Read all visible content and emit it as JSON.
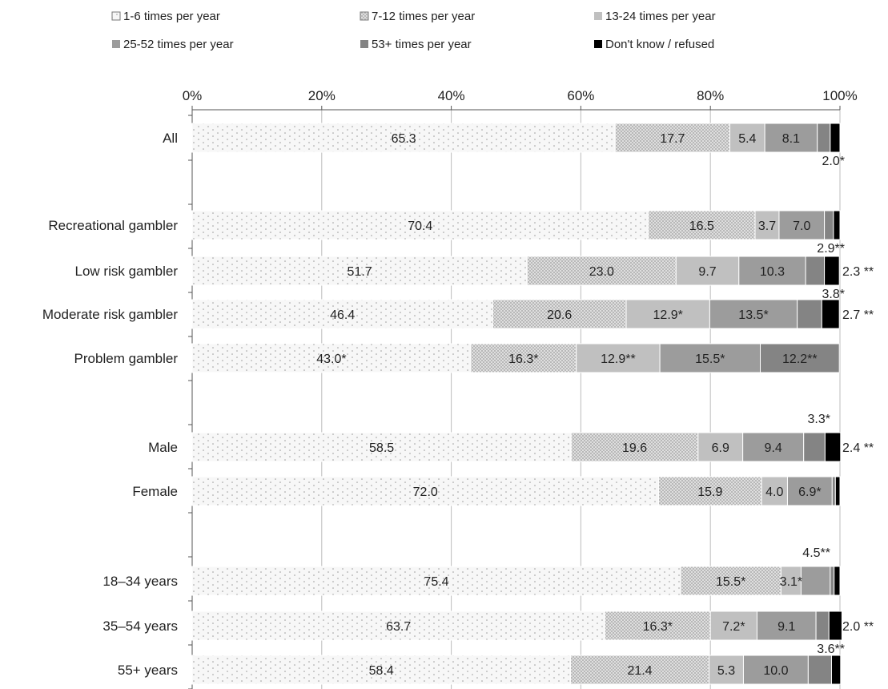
{
  "chart_data": {
    "type": "bar",
    "orientation": "horizontal",
    "stacked": true,
    "title": "",
    "xlabel": "",
    "ylabel": "",
    "xlim": [
      0,
      100
    ],
    "x_ticks": [
      "0%",
      "20%",
      "40%",
      "60%",
      "80%",
      "100%"
    ],
    "x_axis_position": "top",
    "grid": true,
    "legend_position": "top",
    "categories": [
      "All",
      "Recreational gambler",
      "Low risk gambler",
      "Moderate risk gambler",
      "Problem gambler",
      "Male",
      "Female",
      "18–34 years",
      "35–54 years",
      "55+ years"
    ],
    "series": [
      {
        "name": "1-6 times per year",
        "values": [
          65.3,
          70.4,
          51.7,
          46.4,
          43.0,
          58.5,
          72.0,
          75.4,
          63.7,
          58.4
        ]
      },
      {
        "name": "7-12 times per year",
        "values": [
          17.7,
          16.5,
          23.0,
          20.6,
          16.3,
          19.6,
          15.9,
          15.5,
          16.3,
          21.4
        ]
      },
      {
        "name": "13-24 times per year",
        "values": [
          5.4,
          3.7,
          9.7,
          12.9,
          12.9,
          6.9,
          4.0,
          3.1,
          7.2,
          5.3
        ]
      },
      {
        "name": "25-52 times per year",
        "values": [
          8.1,
          7.0,
          10.3,
          13.5,
          15.5,
          9.4,
          6.9,
          4.5,
          9.1,
          10.0
        ]
      },
      {
        "name": "53+ times per year",
        "values": [
          2.0,
          1.4,
          2.9,
          3.8,
          12.2,
          3.3,
          0.5,
          0.6,
          2.0,
          3.6
        ]
      },
      {
        "name": "Don't know / refused",
        "values": [
          1.5,
          1.0,
          2.3,
          2.7,
          0.0,
          2.4,
          0.7,
          0.9,
          2.0,
          1.4
        ]
      }
    ],
    "data_labels": [
      {
        "inside": [
          "65.3",
          "17.7",
          "5.4",
          "8.1"
        ],
        "outside": [
          {
            "text": "2.0*",
            "pos": "below-right"
          }
        ]
      },
      {
        "inside": [
          "70.4",
          "16.5",
          "3.7",
          "7.0"
        ],
        "outside": [
          {
            "text": "2.9**",
            "pos": "below-right"
          }
        ]
      },
      {
        "inside": [
          "51.7",
          "23.0",
          "9.7",
          "10.3"
        ],
        "outside": [
          {
            "text": "2.3 **",
            "pos": "right"
          },
          {
            "text": "3.8*",
            "pos": "below-right"
          }
        ]
      },
      {
        "inside": [
          "46.4",
          "20.6",
          "12.9*",
          "13.5*"
        ],
        "outside": [
          {
            "text": "2.7 **",
            "pos": "right"
          }
        ]
      },
      {
        "inside": [
          "43.0*",
          "16.3*",
          "12.9**",
          "15.5*",
          "12.2**"
        ],
        "outside": []
      },
      {
        "inside": [
          "58.5",
          "19.6",
          "6.9",
          "9.4"
        ],
        "outside": [
          {
            "text": "3.3*",
            "pos": "above-right"
          },
          {
            "text": "2.4 **",
            "pos": "right"
          }
        ]
      },
      {
        "inside": [
          "72.0",
          "15.9",
          "4.0",
          "6.9*"
        ],
        "outside": []
      },
      {
        "inside": [
          "75.4",
          "15.5*",
          "3.1*"
        ],
        "outside": [
          {
            "text": "4.5**",
            "pos": "above-right"
          }
        ]
      },
      {
        "inside": [
          "63.7",
          "16.3*",
          "7.2*",
          "9.1"
        ],
        "outside": [
          {
            "text": "2.0 **",
            "pos": "right"
          },
          {
            "text": "3.6**",
            "pos": "below-right"
          }
        ]
      },
      {
        "inside": [
          "58.4",
          "21.4",
          "5.3",
          "10.0"
        ],
        "outside": []
      }
    ],
    "colors": {
      "1-6 times per year": "#f6f6f6",
      "7-12 times per year": "#dcdcdc",
      "13-24 times per year": "#bdbdbd",
      "25-52 times per year": "#979797",
      "53+ times per year": "#7f7f7f",
      "Don't know / refused": "#000000"
    }
  }
}
